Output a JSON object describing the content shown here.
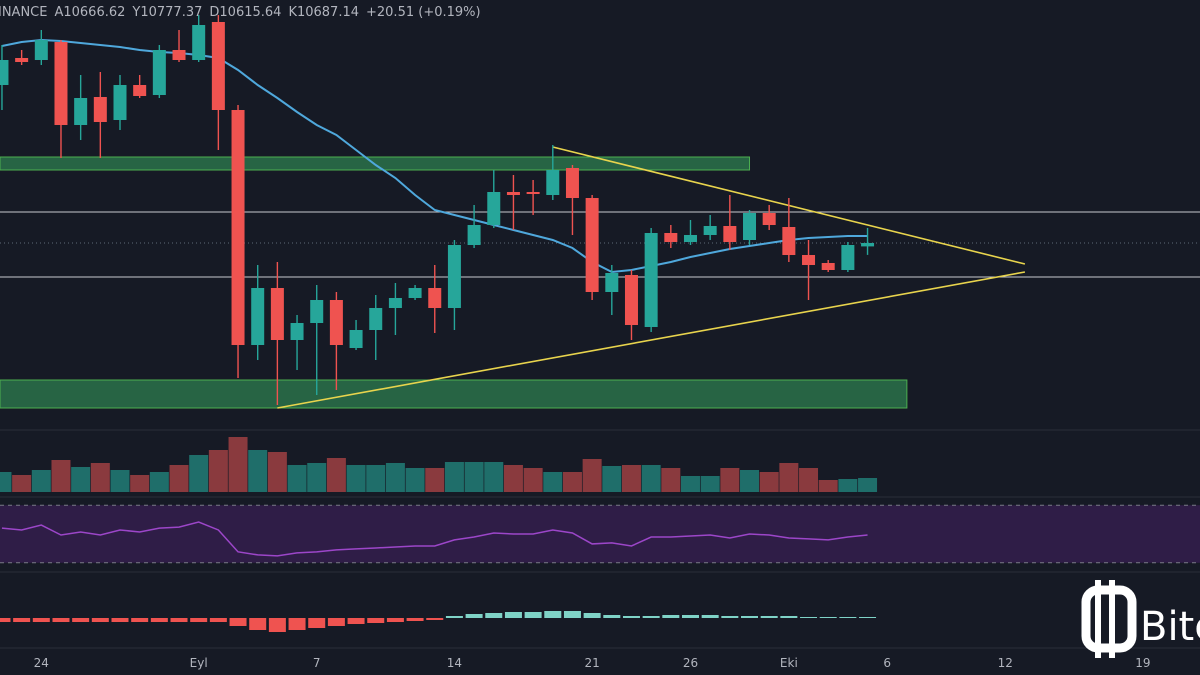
{
  "chart_data": {
    "type": "candlestick",
    "exchange": "INANCE",
    "legend": [
      "A10666.62",
      "Y10777.37",
      "D10615.64",
      "K10687.14",
      "+20.51 (+0.19%)"
    ],
    "brand": "Bitc",
    "up_color": "#26a69a",
    "down_color": "#ef5350",
    "xlim": [
      -0.1,
      60.9
    ],
    "xticks": [
      {
        "value": 2,
        "label": "24"
      },
      {
        "value": 10,
        "label": "Eyl"
      },
      {
        "value": 16,
        "label": "7"
      },
      {
        "value": 23,
        "label": "14"
      },
      {
        "value": 30,
        "label": "21"
      },
      {
        "value": 35,
        "label": "26"
      },
      {
        "value": 40,
        "label": "Eki"
      },
      {
        "value": 45,
        "label": "6"
      },
      {
        "value": 51,
        "label": "12"
      },
      {
        "value": 58,
        "label": "19"
      }
    ],
    "ylim": [
      9565,
      12145
    ],
    "x": [
      0,
      1,
      2,
      3,
      4,
      5,
      6,
      7,
      8,
      9,
      10,
      11,
      12,
      13,
      14,
      15,
      16,
      17,
      18,
      19,
      20,
      21,
      22,
      23,
      24,
      25,
      26,
      27,
      28,
      29,
      30,
      31,
      32,
      33,
      34,
      35,
      36,
      37,
      38,
      39,
      40,
      41,
      42,
      43,
      44
    ],
    "open": [
      11635,
      11797,
      11785,
      11893,
      11395,
      11563,
      11425,
      11635,
      11575,
      11845,
      11785,
      12013,
      11485,
      10075,
      10417,
      10105,
      10207,
      10345,
      10057,
      10165,
      10297,
      10357,
      10417,
      10297,
      10675,
      10795,
      10993,
      10993,
      10975,
      11137,
      10957,
      10393,
      10495,
      10183,
      10747,
      10693,
      10735,
      10789,
      10705,
      10867,
      10783,
      10615,
      10567,
      10525,
      10666.62
    ],
    "high": [
      11875,
      11845,
      11965,
      11905,
      11695,
      11713,
      11695,
      11695,
      11875,
      11965,
      12055,
      12055,
      11515,
      10555,
      10573,
      10255,
      10435,
      10393,
      10225,
      10375,
      10447,
      10435,
      10555,
      10705,
      10915,
      11125,
      11095,
      11065,
      11275,
      11155,
      10975,
      10555,
      10525,
      10777,
      10795,
      10825,
      10855,
      10975,
      10885,
      10915,
      10957,
      10705,
      10585,
      10693,
      10777.37
    ],
    "low": [
      11485,
      11755,
      11755,
      11197,
      11305,
      11197,
      11365,
      11557,
      11557,
      11773,
      11773,
      11245,
      9877,
      9985,
      9715,
      9925,
      9775,
      9805,
      10045,
      9985,
      10135,
      10345,
      10147,
      10165,
      10657,
      10777,
      10765,
      10855,
      10945,
      10735,
      10345,
      10255,
      10105,
      10153,
      10657,
      10675,
      10705,
      10645,
      10675,
      10765,
      10573,
      10345,
      10513,
      10513,
      10615.64
    ],
    "close": [
      11785,
      11773,
      11905,
      11395,
      11557,
      11413,
      11635,
      11569,
      11845,
      11785,
      11995,
      11485,
      10075,
      10417,
      10105,
      10207,
      10345,
      10075,
      10165,
      10297,
      10357,
      10417,
      10297,
      10675,
      10795,
      10993,
      10975,
      10981,
      11125,
      10957,
      10393,
      10507,
      10195,
      10747,
      10693,
      10735,
      10789,
      10693,
      10867,
      10795,
      10615,
      10555,
      10525,
      10675,
      10687.14
    ],
    "ma": {
      "color": "#4fa8dc",
      "values": [
        11869,
        11893,
        11905,
        11899,
        11887,
        11875,
        11863,
        11845,
        11833,
        11827,
        11815,
        11797,
        11725,
        11635,
        11557,
        11473,
        11395,
        11335,
        11245,
        11155,
        11077,
        10975,
        10885,
        10855,
        10825,
        10795,
        10765,
        10735,
        10705,
        10657,
        10573,
        10513,
        10525,
        10549,
        10573,
        10603,
        10627,
        10651,
        10669,
        10687,
        10705,
        10717,
        10723,
        10729,
        10729
      ]
    },
    "levels": {
      "color": "#c8cad0",
      "values": [
        10873,
        10483
      ]
    },
    "zones": [
      {
        "x": [
          -0.1,
          38
        ],
        "y": [
          11125,
          11203
        ]
      },
      {
        "x": [
          -0.1,
          46
        ],
        "y": [
          9697,
          9865
        ]
      }
    ],
    "zone_color": "#2e7d4f",
    "trendlines": {
      "color": "#e8d44d",
      "lines": [
        {
          "x": [
            28,
            52
          ],
          "y": [
            11263,
            10561
          ]
        },
        {
          "x": [
            14,
            52
          ],
          "y": [
            9697,
            10513
          ]
        }
      ]
    },
    "volume": {
      "ylim": [
        0,
        62
      ],
      "values": [
        20,
        17,
        22,
        32,
        25,
        29,
        22,
        17,
        20,
        27,
        37,
        42,
        55,
        42,
        40,
        27,
        29,
        34,
        27,
        27,
        29,
        24,
        24,
        30,
        30,
        30,
        27,
        24,
        20,
        20,
        33,
        26,
        27,
        27,
        24,
        16,
        16,
        24,
        22,
        20,
        29,
        24,
        12,
        13,
        14
      ]
    },
    "rsi": {
      "color": "#9c46c9",
      "ylim": [
        25,
        75
      ],
      "levels": [
        30,
        70
      ],
      "values": [
        54.1,
        52.8,
        56.2,
        49.3,
        51.4,
        49.3,
        52.8,
        51.4,
        54.1,
        54.8,
        58.3,
        52.8,
        37.6,
        35.5,
        34.8,
        36.9,
        37.6,
        39.0,
        39.7,
        40.3,
        41.0,
        41.7,
        41.7,
        45.9,
        47.9,
        50.7,
        50,
        50,
        52.8,
        50.7,
        43.1,
        43.8,
        41.7,
        47.9,
        47.9,
        48.6,
        49.3,
        47.2,
        50,
        49.3,
        47.2,
        46.6,
        45.9,
        47.9,
        49.3
      ]
    },
    "macd": {
      "ylim": [
        -27,
        43
      ],
      "values": [
        -4,
        -4,
        -4,
        -4,
        -4,
        -4,
        -4,
        -4,
        -4,
        -4,
        -4,
        -4,
        -8,
        -12,
        -14,
        -12,
        -10,
        -8,
        -6,
        -5,
        -4,
        -3,
        -2,
        2,
        4,
        5,
        6,
        6,
        7,
        7,
        5,
        3,
        2,
        2,
        3,
        3,
        3,
        2,
        2,
        2,
        2,
        1,
        1,
        1,
        1
      ]
    }
  }
}
